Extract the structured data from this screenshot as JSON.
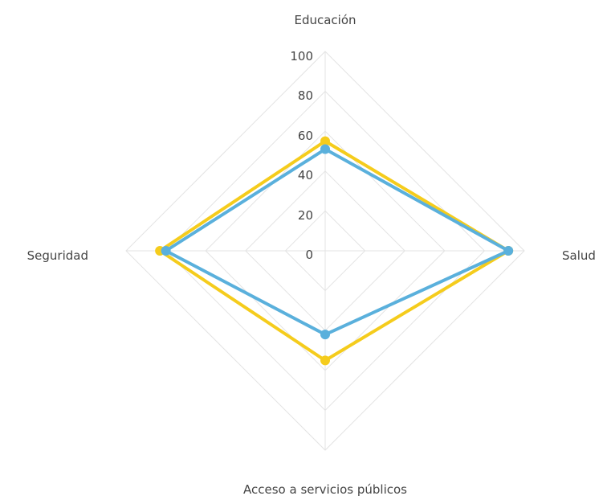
{
  "chart_data": {
    "type": "radar",
    "axes": [
      "Educación",
      "Salud",
      "Acceso a servicios públicos",
      "Seguridad"
    ],
    "ticks": [
      "0",
      "20",
      "40",
      "60",
      "80",
      "100"
    ],
    "range": [
      0,
      100
    ],
    "grid": true,
    "legend": "none",
    "series": [
      {
        "values": [
          55,
          92,
          55,
          83
        ],
        "color": "#f5cc1c"
      },
      {
        "values": [
          51,
          92,
          42,
          80
        ],
        "color": "#5ab0dc"
      }
    ]
  }
}
